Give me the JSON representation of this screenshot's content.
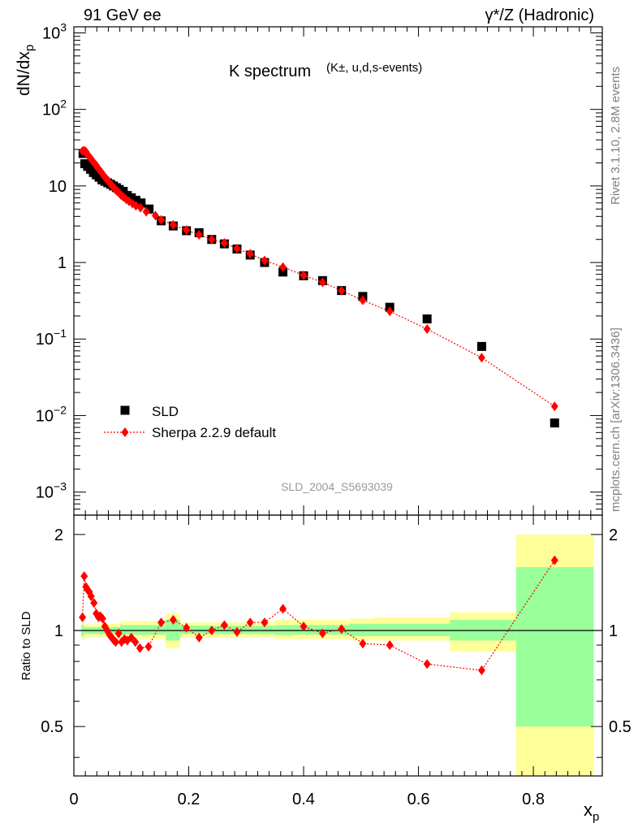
{
  "header": {
    "left": "91 GeV ee",
    "right": "γ*/Z (Hadronic)"
  },
  "side_labels": {
    "top": "Rivet 3.1.10,  2.8M events",
    "bottom": "mcplots.cern.ch [arXiv:1306.3436]"
  },
  "chart_data": [
    {
      "type": "scatter",
      "title_main": "K spectrum",
      "title_sub": "(K±, u,d,s-events)",
      "ylabel": "dN/dx_p",
      "yscale": "log",
      "ylim": [
        0.0005,
        1200
      ],
      "xlim": [
        0,
        0.92
      ],
      "yticks": [
        {
          "v": 0.001,
          "m": "10",
          "e": "−3"
        },
        {
          "v": 0.01,
          "m": "10",
          "e": "−2"
        },
        {
          "v": 0.1,
          "m": "10",
          "e": "−1"
        },
        {
          "v": 1,
          "m": "1",
          "e": ""
        },
        {
          "v": 10,
          "m": "10",
          "e": ""
        },
        {
          "v": 100,
          "m": "10",
          "e": "2"
        },
        {
          "v": 1000,
          "m": "10",
          "e": "3"
        }
      ],
      "watermark": "SLD_2004_S5693039",
      "legend": [
        {
          "label": "SLD",
          "marker": "square",
          "color": "#000000"
        },
        {
          "label": "Sherpa 2.2.9 default",
          "marker": "diamond",
          "color": "#ff0000"
        }
      ],
      "series": [
        {
          "name": "SLD",
          "color": "#000000",
          "marker": "square",
          "points": [
            [
              0.016,
              26.5
            ],
            [
              0.019,
              19.5
            ],
            [
              0.024,
              18.0
            ],
            [
              0.029,
              16.5
            ],
            [
              0.034,
              15.0
            ],
            [
              0.039,
              14.0
            ],
            [
              0.044,
              13.0
            ],
            [
              0.049,
              12.0
            ],
            [
              0.054,
              11.5
            ],
            [
              0.059,
              11.0
            ],
            [
              0.064,
              10.5
            ],
            [
              0.069,
              10.0
            ],
            [
              0.074,
              9.5
            ],
            [
              0.079,
              9.0
            ],
            [
              0.086,
              8.5
            ],
            [
              0.093,
              7.5
            ],
            [
              0.1,
              7.0
            ],
            [
              0.108,
              6.5
            ],
            [
              0.117,
              6.0
            ],
            [
              0.131,
              5.0
            ],
            [
              0.152,
              3.5
            ],
            [
              0.173,
              3.0
            ],
            [
              0.196,
              2.6
            ],
            [
              0.218,
              2.45
            ],
            [
              0.24,
              2.0
            ],
            [
              0.262,
              1.75
            ],
            [
              0.284,
              1.5
            ],
            [
              0.307,
              1.25
            ],
            [
              0.332,
              1.0
            ],
            [
              0.364,
              0.75
            ],
            [
              0.4,
              0.67
            ],
            [
              0.433,
              0.58
            ],
            [
              0.466,
              0.43
            ],
            [
              0.503,
              0.36
            ],
            [
              0.55,
              0.26
            ],
            [
              0.615,
              0.183
            ],
            [
              0.71,
              0.08
            ],
            [
              0.837,
              0.008
            ]
          ]
        },
        {
          "name": "Sherpa 2.2.9 default",
          "color": "#ff0000",
          "marker": "diamond",
          "points": [
            [
              0.015,
              28.5
            ],
            [
              0.018,
              29.0
            ],
            [
              0.021,
              28.0
            ],
            [
              0.024,
              25.5
            ],
            [
              0.027,
              24.0
            ],
            [
              0.03,
              22.5
            ],
            [
              0.033,
              21.0
            ],
            [
              0.036,
              19.5
            ],
            [
              0.039,
              18.5
            ],
            [
              0.042,
              17.0
            ],
            [
              0.045,
              16.0
            ],
            [
              0.048,
              15.0
            ],
            [
              0.051,
              14.0
            ],
            [
              0.054,
              13.0
            ],
            [
              0.057,
              12.3
            ],
            [
              0.06,
              11.5
            ],
            [
              0.063,
              10.8
            ],
            [
              0.066,
              10.2
            ],
            [
              0.069,
              9.6
            ],
            [
              0.072,
              9.0
            ],
            [
              0.075,
              8.6
            ],
            [
              0.078,
              8.2
            ],
            [
              0.082,
              7.6
            ],
            [
              0.086,
              7.2
            ],
            [
              0.091,
              6.7
            ],
            [
              0.096,
              6.3
            ],
            [
              0.102,
              5.9
            ],
            [
              0.108,
              5.5
            ],
            [
              0.116,
              5.2
            ],
            [
              0.126,
              4.6
            ],
            [
              0.142,
              4.1
            ],
            [
              0.152,
              3.6
            ],
            [
              0.173,
              3.1
            ],
            [
              0.196,
              2.65
            ],
            [
              0.218,
              2.3
            ],
            [
              0.24,
              2.0
            ],
            [
              0.262,
              1.8
            ],
            [
              0.284,
              1.52
            ],
            [
              0.307,
              1.3
            ],
            [
              0.332,
              1.06
            ],
            [
              0.364,
              0.87
            ],
            [
              0.4,
              0.68
            ],
            [
              0.433,
              0.55
            ],
            [
              0.466,
              0.43
            ],
            [
              0.503,
              0.32
            ],
            [
              0.55,
              0.23
            ],
            [
              0.615,
              0.135
            ],
            [
              0.71,
              0.057
            ],
            [
              0.837,
              0.0132
            ]
          ]
        }
      ]
    },
    {
      "type": "scatter",
      "ylabel": "Ratio to SLD",
      "ylim": [
        0.35,
        2.3
      ],
      "xlim": [
        0,
        0.92
      ],
      "xlabel": "x_p",
      "xticks": [
        "0",
        "0.2",
        "0.4",
        "0.6",
        "0.8"
      ],
      "yticks": [
        "0.5",
        "1",
        "2"
      ],
      "bands": [
        {
          "x0": 0.013,
          "x1": 0.018,
          "inner": [
            0.96,
            1.04
          ],
          "outer": [
            0.93,
            1.07
          ]
        },
        {
          "x0": 0.018,
          "x1": 0.04,
          "inner": [
            0.975,
            1.025
          ],
          "outer": [
            0.955,
            1.045
          ]
        },
        {
          "x0": 0.04,
          "x1": 0.08,
          "inner": [
            0.975,
            1.025
          ],
          "outer": [
            0.955,
            1.05
          ]
        },
        {
          "x0": 0.08,
          "x1": 0.16,
          "inner": [
            0.97,
            1.04
          ],
          "outer": [
            0.94,
            1.07
          ]
        },
        {
          "x0": 0.16,
          "x1": 0.185,
          "inner": [
            0.93,
            1.08
          ],
          "outer": [
            0.88,
            1.13
          ]
        },
        {
          "x0": 0.185,
          "x1": 0.35,
          "inner": [
            0.975,
            1.035
          ],
          "outer": [
            0.95,
            1.06
          ]
        },
        {
          "x0": 0.35,
          "x1": 0.48,
          "inner": [
            0.97,
            1.04
          ],
          "outer": [
            0.94,
            1.08
          ]
        },
        {
          "x0": 0.48,
          "x1": 0.52,
          "inner": [
            0.96,
            1.05
          ],
          "outer": [
            0.93,
            1.09
          ]
        },
        {
          "x0": 0.52,
          "x1": 0.655,
          "inner": [
            0.96,
            1.05
          ],
          "outer": [
            0.93,
            1.1
          ]
        },
        {
          "x0": 0.655,
          "x1": 0.77,
          "inner": [
            0.93,
            1.08
          ],
          "outer": [
            0.86,
            1.14
          ]
        },
        {
          "x0": 0.77,
          "x1": 0.905,
          "inner": [
            0.5,
            1.58
          ],
          "outer": [
            0.3,
            2.0
          ]
        }
      ],
      "series": [
        {
          "name": "Sherpa 2.2.9 default",
          "color": "#ff0000",
          "points": [
            [
              0.015,
              1.1
            ],
            [
              0.018,
              1.48
            ],
            [
              0.021,
              1.37
            ],
            [
              0.024,
              1.34
            ],
            [
              0.027,
              1.32
            ],
            [
              0.03,
              1.28
            ],
            [
              0.035,
              1.22
            ],
            [
              0.039,
              1.13
            ],
            [
              0.043,
              1.1
            ],
            [
              0.046,
              1.11
            ],
            [
              0.05,
              1.09
            ],
            [
              0.054,
              1.03
            ],
            [
              0.058,
              1.0
            ],
            [
              0.062,
              0.97
            ],
            [
              0.066,
              0.95
            ],
            [
              0.07,
              0.93
            ],
            [
              0.073,
              0.92
            ],
            [
              0.078,
              0.98
            ],
            [
              0.083,
              0.92
            ],
            [
              0.088,
              0.94
            ],
            [
              0.093,
              0.93
            ],
            [
              0.1,
              0.95
            ],
            [
              0.107,
              0.92
            ],
            [
              0.115,
              0.88
            ],
            [
              0.13,
              0.89
            ],
            [
              0.152,
              1.06
            ],
            [
              0.173,
              1.08
            ],
            [
              0.196,
              1.02
            ],
            [
              0.218,
              0.95
            ],
            [
              0.24,
              1.0
            ],
            [
              0.262,
              1.04
            ],
            [
              0.284,
              0.99
            ],
            [
              0.307,
              1.06
            ],
            [
              0.332,
              1.06
            ],
            [
              0.364,
              1.17
            ],
            [
              0.4,
              1.03
            ],
            [
              0.433,
              0.98
            ],
            [
              0.466,
              1.01
            ],
            [
              0.503,
              0.91
            ],
            [
              0.55,
              0.9
            ],
            [
              0.615,
              0.785
            ],
            [
              0.71,
              0.75
            ],
            [
              0.837,
              1.66
            ]
          ]
        }
      ]
    }
  ]
}
